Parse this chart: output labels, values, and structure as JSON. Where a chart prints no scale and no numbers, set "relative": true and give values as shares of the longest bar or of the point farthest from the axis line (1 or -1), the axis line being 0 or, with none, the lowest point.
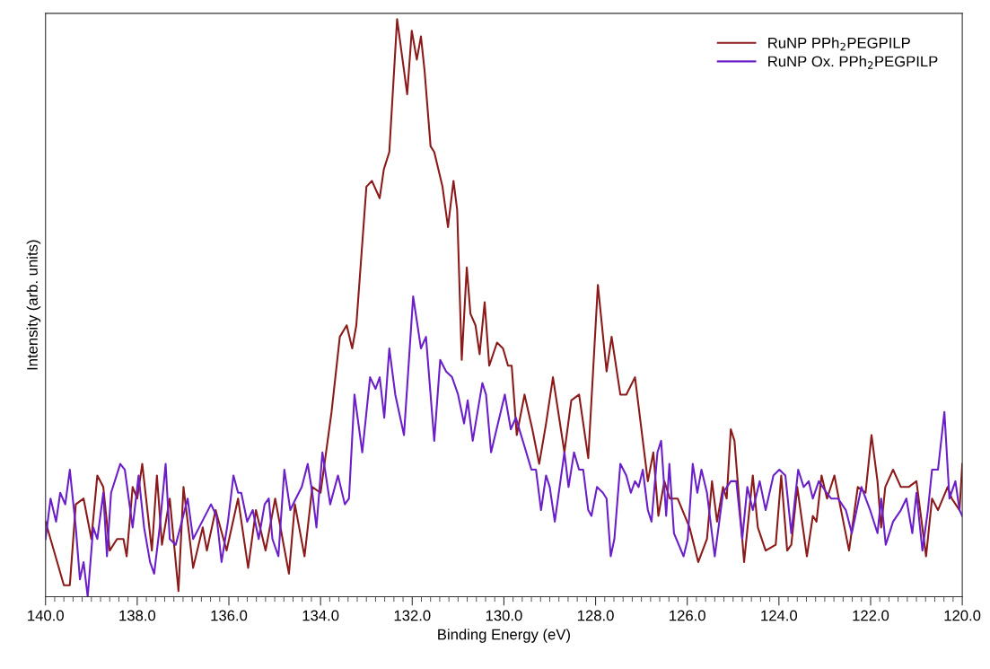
{
  "chart_data": {
    "type": "line",
    "xlabel": "Binding Energy (eV)",
    "ylabel": "Intensity (arb. units)",
    "relative": true,
    "xlim": [
      140,
      120
    ],
    "xticks": [
      {
        "value": 140,
        "label": "140.0"
      },
      {
        "value": 138,
        "label": "138.0"
      },
      {
        "value": 136,
        "label": "136.0"
      },
      {
        "value": 134,
        "label": "134.0"
      },
      {
        "value": 132,
        "label": "132.0"
      },
      {
        "value": 130,
        "label": "130.0"
      },
      {
        "value": 128,
        "label": "128.0"
      },
      {
        "value": 126,
        "label": "126.0"
      },
      {
        "value": 124,
        "label": "124.0"
      },
      {
        "value": 122,
        "label": "122.0"
      },
      {
        "value": 120,
        "label": "120.0"
      }
    ],
    "tick_labels": "x",
    "grid": false,
    "legend": "top right",
    "marker": "none",
    "line_style": "solid",
    "series": [
      {
        "name": "RuNP PPh$_{2}$PEGPILP",
        "color": "#8b1a1a",
        "x": [
          140.0,
          139.6,
          139.47,
          139.34,
          139.17,
          139.0,
          138.87,
          138.74,
          138.6,
          138.44,
          138.3,
          138.23,
          138.1,
          138.0,
          137.89,
          137.68,
          137.57,
          137.46,
          137.29,
          137.1,
          136.99,
          136.9,
          136.78,
          136.57,
          136.48,
          136.29,
          136.05,
          135.8,
          135.58,
          135.41,
          135.2,
          134.99,
          134.69,
          134.56,
          134.35,
          134.18,
          134.0,
          133.76,
          133.58,
          133.43,
          133.31,
          133.22,
          133.0,
          132.88,
          132.71,
          132.62,
          132.5,
          132.33,
          132.11,
          132.01,
          131.9,
          131.81,
          131.73,
          131.6,
          131.52,
          131.34,
          131.22,
          131.1,
          131.02,
          130.92,
          130.81,
          130.73,
          130.62,
          130.53,
          130.42,
          130.32,
          130.15,
          130.02,
          129.91,
          129.83,
          129.72,
          129.55,
          129.38,
          129.23,
          129.08,
          128.93,
          128.68,
          128.53,
          128.36,
          128.16,
          127.95,
          127.76,
          127.65,
          127.46,
          127.33,
          127.14,
          126.86,
          126.74,
          126.63,
          126.5,
          126.38,
          126.21,
          125.95,
          125.76,
          125.57,
          125.46,
          125.35,
          125.22,
          125.14,
          125.05,
          124.97,
          124.89,
          124.76,
          124.57,
          124.46,
          124.29,
          124.07,
          123.95,
          123.82,
          123.73,
          123.6,
          123.39,
          123.26,
          123.18,
          123.07,
          122.95,
          122.79,
          122.67,
          122.47,
          122.28,
          122.11,
          121.98,
          121.85,
          121.77,
          121.68,
          121.51,
          121.34,
          121.17,
          121.0,
          120.79,
          120.66,
          120.53,
          120.32,
          120.23,
          120.06,
          120.0
        ],
        "values": [
          0.13,
          0.02,
          0.02,
          0.16,
          0.17,
          0.1,
          0.21,
          0.19,
          0.08,
          0.1,
          0.1,
          0.07,
          0.19,
          0.17,
          0.23,
          0.08,
          0.21,
          0.09,
          0.17,
          0.01,
          0.19,
          0.13,
          0.05,
          0.12,
          0.08,
          0.15,
          0.08,
          0.17,
          0.05,
          0.15,
          0.08,
          0.17,
          0.04,
          0.16,
          0.07,
          0.19,
          0.18,
          0.32,
          0.45,
          0.47,
          0.43,
          0.47,
          0.71,
          0.72,
          0.69,
          0.74,
          0.77,
          1.0,
          0.87,
          0.98,
          0.93,
          0.97,
          0.91,
          0.78,
          0.77,
          0.71,
          0.64,
          0.72,
          0.67,
          0.41,
          0.57,
          0.49,
          0.47,
          0.42,
          0.51,
          0.4,
          0.44,
          0.43,
          0.4,
          0.4,
          0.28,
          0.35,
          0.29,
          0.23,
          0.3,
          0.38,
          0.25,
          0.34,
          0.35,
          0.24,
          0.54,
          0.39,
          0.45,
          0.35,
          0.35,
          0.38,
          0.2,
          0.25,
          0.14,
          0.2,
          0.17,
          0.17,
          0.12,
          0.06,
          0.1,
          0.2,
          0.13,
          0.19,
          0.17,
          0.29,
          0.27,
          0.19,
          0.06,
          0.21,
          0.12,
          0.08,
          0.09,
          0.21,
          0.08,
          0.09,
          0.19,
          0.07,
          0.14,
          0.13,
          0.21,
          0.17,
          0.21,
          0.16,
          0.08,
          0.19,
          0.18,
          0.28,
          0.2,
          0.12,
          0.19,
          0.22,
          0.19,
          0.19,
          0.2,
          0.07,
          0.17,
          0.15,
          0.19,
          0.17,
          0.15,
          0.23
        ]
      },
      {
        "name": "RuNP Ox. PPh$_{2}$PEGPILP",
        "color": "#6a1fc8",
        "x": [
          140.0,
          139.89,
          139.77,
          139.68,
          139.57,
          139.47,
          139.34,
          139.25,
          139.17,
          139.08,
          138.96,
          138.87,
          138.74,
          138.66,
          138.57,
          138.37,
          138.27,
          138.1,
          137.97,
          137.85,
          137.72,
          137.63,
          137.51,
          137.38,
          137.29,
          137.16,
          137.06,
          136.9,
          136.78,
          136.65,
          136.39,
          136.27,
          136.16,
          136.02,
          135.9,
          135.8,
          135.73,
          135.6,
          135.48,
          135.35,
          135.22,
          135.13,
          135.05,
          134.92,
          134.79,
          134.66,
          134.54,
          134.41,
          134.28,
          134.18,
          134.09,
          133.96,
          133.79,
          133.62,
          133.47,
          133.38,
          133.26,
          133.09,
          132.92,
          132.8,
          132.71,
          132.61,
          132.5,
          132.37,
          132.18,
          131.98,
          131.81,
          131.7,
          131.52,
          131.39,
          131.26,
          131.13,
          131.0,
          130.87,
          130.79,
          130.68,
          130.47,
          130.39,
          130.28,
          129.98,
          129.85,
          129.74,
          129.55,
          129.4,
          129.3,
          129.19,
          129.08,
          129.0,
          128.89,
          128.68,
          128.59,
          128.47,
          128.36,
          128.27,
          128.16,
          128.09,
          127.97,
          127.84,
          127.76,
          127.67,
          127.59,
          127.46,
          127.33,
          127.23,
          127.14,
          127.06,
          126.97,
          126.86,
          126.78,
          126.65,
          126.57,
          126.46,
          126.39,
          126.29,
          126.08,
          125.99,
          125.88,
          125.78,
          125.69,
          125.57,
          125.4,
          125.22,
          125.05,
          124.93,
          124.8,
          124.69,
          124.57,
          124.42,
          124.29,
          124.12,
          123.99,
          123.86,
          123.73,
          123.58,
          123.46,
          123.35,
          123.26,
          123.13,
          122.96,
          122.86,
          122.71,
          122.54,
          122.41,
          122.2,
          122.01,
          121.85,
          121.77,
          121.67,
          121.51,
          121.34,
          121.22,
          121.09,
          121.0,
          120.87,
          120.75,
          120.66,
          120.53,
          120.39,
          120.28,
          120.15,
          120.06,
          120.0
        ],
        "values": [
          0.1,
          0.17,
          0.13,
          0.18,
          0.16,
          0.22,
          0.12,
          0.03,
          0.06,
          0.0,
          0.12,
          0.1,
          0.18,
          0.07,
          0.18,
          0.23,
          0.22,
          0.12,
          0.21,
          0.12,
          0.06,
          0.04,
          0.12,
          0.23,
          0.1,
          0.09,
          0.12,
          0.17,
          0.1,
          0.12,
          0.16,
          0.14,
          0.06,
          0.13,
          0.21,
          0.18,
          0.18,
          0.13,
          0.15,
          0.1,
          0.16,
          0.17,
          0.1,
          0.07,
          0.22,
          0.15,
          0.17,
          0.19,
          0.23,
          0.18,
          0.12,
          0.25,
          0.16,
          0.21,
          0.16,
          0.17,
          0.35,
          0.25,
          0.38,
          0.36,
          0.38,
          0.31,
          0.43,
          0.35,
          0.28,
          0.52,
          0.43,
          0.45,
          0.27,
          0.41,
          0.39,
          0.38,
          0.35,
          0.3,
          0.34,
          0.27,
          0.37,
          0.35,
          0.25,
          0.35,
          0.29,
          0.31,
          0.26,
          0.22,
          0.22,
          0.15,
          0.21,
          0.19,
          0.13,
          0.25,
          0.19,
          0.25,
          0.22,
          0.22,
          0.15,
          0.14,
          0.19,
          0.18,
          0.17,
          0.07,
          0.1,
          0.23,
          0.21,
          0.18,
          0.2,
          0.19,
          0.22,
          0.15,
          0.13,
          0.25,
          0.27,
          0.14,
          0.23,
          0.11,
          0.07,
          0.1,
          0.23,
          0.18,
          0.22,
          0.18,
          0.07,
          0.18,
          0.2,
          0.2,
          0.1,
          0.19,
          0.15,
          0.2,
          0.15,
          0.21,
          0.22,
          0.21,
          0.11,
          0.22,
          0.19,
          0.2,
          0.17,
          0.2,
          0.18,
          0.17,
          0.17,
          0.15,
          0.11,
          0.19,
          0.15,
          0.11,
          0.17,
          0.09,
          0.13,
          0.15,
          0.17,
          0.11,
          0.18,
          0.08,
          0.15,
          0.22,
          0.22,
          0.32,
          0.17,
          0.2,
          0.15,
          0.14
        ]
      }
    ]
  }
}
